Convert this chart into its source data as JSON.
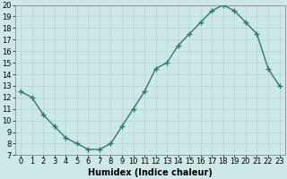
{
  "x": [
    0,
    1,
    2,
    3,
    4,
    5,
    6,
    7,
    8,
    9,
    10,
    11,
    12,
    13,
    14,
    15,
    16,
    17,
    18,
    19,
    20,
    21,
    22,
    23
  ],
  "y": [
    12.5,
    12.0,
    10.5,
    9.5,
    8.5,
    8.0,
    7.5,
    7.5,
    8.0,
    9.5,
    11.0,
    12.5,
    14.5,
    15.0,
    16.5,
    17.5,
    18.5,
    19.5,
    20.0,
    19.5,
    18.5,
    17.5,
    14.5,
    13.0
  ],
  "xlabel": "Humidex (Indice chaleur)",
  "ylim": [
    7,
    20
  ],
  "xlim_min": -0.5,
  "xlim_max": 23.5,
  "yticks": [
    7,
    8,
    9,
    10,
    11,
    12,
    13,
    14,
    15,
    16,
    17,
    18,
    19,
    20
  ],
  "xticks": [
    0,
    1,
    2,
    3,
    4,
    5,
    6,
    7,
    8,
    9,
    10,
    11,
    12,
    13,
    14,
    15,
    16,
    17,
    18,
    19,
    20,
    21,
    22,
    23
  ],
  "xtick_labels": [
    "0",
    "1",
    "2",
    "3",
    "4",
    "5",
    "6",
    "7",
    "8",
    "9",
    "10",
    "11",
    "12",
    "13",
    "14",
    "15",
    "16",
    "17",
    "18",
    "19",
    "20",
    "21",
    "22",
    "23"
  ],
  "line_color": "#2d7a6a",
  "marker_color": "#2d7a6a",
  "bg_color": "#cce8e8",
  "grid_color": "#b8d4d4",
  "xlabel_fontsize": 7,
  "tick_fontsize": 6,
  "line_width": 1.0,
  "marker_size": 4,
  "marker_style": "+"
}
